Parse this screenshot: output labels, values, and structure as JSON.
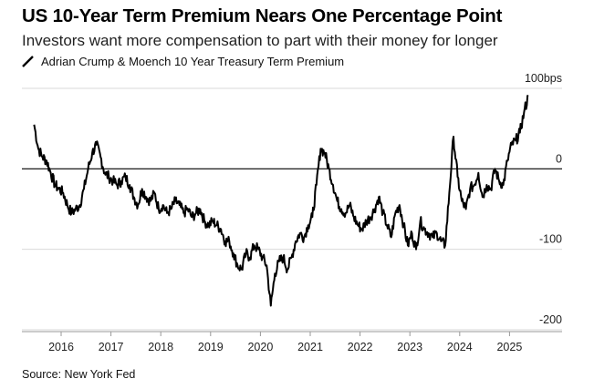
{
  "header": {
    "title": "US 10-Year Term Premium Nears One Percentage Point",
    "subtitle": "Investors want more compensation to part with their money for longer"
  },
  "legend": {
    "label": "Adrian Crump & Moench 10 Year Treasury Term Premium",
    "icon": "diagonal-line-icon",
    "color": "#000000"
  },
  "footer": {
    "source": "Source: New York Fed"
  },
  "chart_data": {
    "type": "line",
    "title": "US 10-Year Term Premium Nears One Percentage Point",
    "subtitle": "Investors want more compensation to part with their money for longer",
    "xlabel": "",
    "ylabel": "",
    "x_tick_labels": [
      "2016",
      "2017",
      "2018",
      "2019",
      "2020",
      "2021",
      "2022",
      "2023",
      "2024",
      "2025"
    ],
    "y_tick_labels": [
      "100bps",
      "0",
      "-100",
      "-200"
    ],
    "y_ticks": [
      100,
      0,
      -100,
      -200
    ],
    "ylim": [
      -200,
      100
    ],
    "xlim": [
      "2015-05",
      "2025-10"
    ],
    "grid": true,
    "zero_line": true,
    "line_color": "#000000",
    "series": [
      {
        "name": "Adrian Crump & Moench 10 Year Treasury Term Premium",
        "x": [
          "2015-06",
          "2015-07",
          "2015-08",
          "2015-09",
          "2015-10",
          "2015-11",
          "2015-12",
          "2016-01",
          "2016-02",
          "2016-03",
          "2016-04",
          "2016-05",
          "2016-06",
          "2016-07",
          "2016-08",
          "2016-09",
          "2016-10",
          "2016-11",
          "2016-12",
          "2017-01",
          "2017-02",
          "2017-03",
          "2017-04",
          "2017-05",
          "2017-06",
          "2017-07",
          "2017-08",
          "2017-09",
          "2017-10",
          "2017-11",
          "2017-12",
          "2018-01",
          "2018-02",
          "2018-03",
          "2018-04",
          "2018-05",
          "2018-06",
          "2018-07",
          "2018-08",
          "2018-09",
          "2018-10",
          "2018-11",
          "2018-12",
          "2019-01",
          "2019-02",
          "2019-03",
          "2019-04",
          "2019-05",
          "2019-06",
          "2019-07",
          "2019-08",
          "2019-09",
          "2019-10",
          "2019-11",
          "2019-12",
          "2020-01",
          "2020-02",
          "2020-03",
          "2020-04",
          "2020-05",
          "2020-06",
          "2020-07",
          "2020-08",
          "2020-09",
          "2020-10",
          "2020-11",
          "2020-12",
          "2021-01",
          "2021-02",
          "2021-03",
          "2021-04",
          "2021-05",
          "2021-06",
          "2021-07",
          "2021-08",
          "2021-09",
          "2021-10",
          "2021-11",
          "2021-12",
          "2022-01",
          "2022-02",
          "2022-03",
          "2022-04",
          "2022-05",
          "2022-06",
          "2022-07",
          "2022-08",
          "2022-09",
          "2022-10",
          "2022-11",
          "2022-12",
          "2023-01",
          "2023-02",
          "2023-03",
          "2023-04",
          "2023-05",
          "2023-06",
          "2023-07",
          "2023-08",
          "2023-09",
          "2023-10",
          "2023-11",
          "2023-12",
          "2024-01",
          "2024-02",
          "2024-03",
          "2024-04",
          "2024-05",
          "2024-06",
          "2024-07",
          "2024-08",
          "2024-09",
          "2024-10",
          "2024-11",
          "2024-12",
          "2025-01",
          "2025-02",
          "2025-03",
          "2025-04",
          "2025-05"
        ],
        "values": [
          55,
          25,
          15,
          10,
          -5,
          -20,
          -25,
          -30,
          -45,
          -55,
          -50,
          -45,
          -25,
          0,
          20,
          30,
          15,
          -5,
          -10,
          -15,
          -20,
          -15,
          -10,
          -20,
          -35,
          -45,
          -25,
          -35,
          -40,
          -30,
          -50,
          -45,
          -55,
          -50,
          -40,
          -45,
          -55,
          -50,
          -60,
          -55,
          -50,
          -65,
          -70,
          -65,
          -70,
          -75,
          -90,
          -90,
          -105,
          -120,
          -125,
          -105,
          -110,
          -95,
          -100,
          -110,
          -120,
          -170,
          -130,
          -115,
          -110,
          -125,
          -110,
          -90,
          -80,
          -85,
          -70,
          -60,
          -20,
          25,
          20,
          0,
          -20,
          -40,
          -50,
          -55,
          -45,
          -60,
          -70,
          -75,
          -65,
          -60,
          -50,
          -35,
          -55,
          -70,
          -85,
          -55,
          -45,
          -70,
          -95,
          -80,
          -100,
          -65,
          -75,
          -80,
          -85,
          -80,
          -90,
          -95,
          -30,
          40,
          -10,
          -40,
          -50,
          -25,
          -20,
          -5,
          -35,
          -20,
          -25,
          0,
          -15,
          -20,
          10,
          30,
          35,
          45,
          70,
          90
        ]
      }
    ]
  }
}
